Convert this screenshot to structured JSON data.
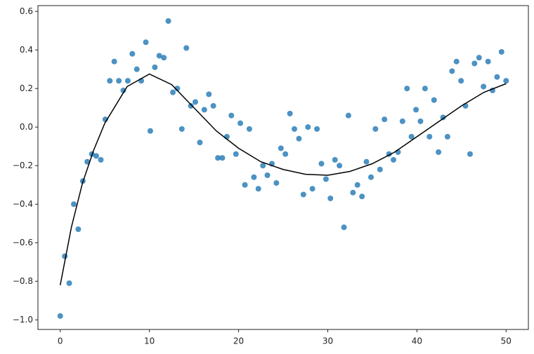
{
  "chart_data": {
    "type": "scatter",
    "xlim": [
      -2.5,
      52.5
    ],
    "ylim": [
      -1.05,
      0.63
    ],
    "xticks": [
      0,
      10,
      20,
      30,
      40,
      50
    ],
    "yticks": [
      {
        "value": 0.6,
        "label": "0.6"
      },
      {
        "value": 0.4,
        "label": "0.4"
      },
      {
        "value": 0.2,
        "label": "0.2"
      },
      {
        "value": 0,
        "label": "0.0"
      },
      {
        "value": -0.2,
        "label": "−0.2"
      },
      {
        "value": -0.4,
        "label": "−0.4"
      },
      {
        "value": -0.6,
        "label": "−0.6"
      },
      {
        "value": -0.8,
        "label": "−0.8"
      },
      {
        "value": -1,
        "label": "−1.0"
      }
    ],
    "series": [
      {
        "color": "#1f77b4",
        "x": [
          0,
          0.51,
          1.01,
          1.52,
          2.02,
          2.53,
          3.03,
          3.54,
          4.04,
          4.55,
          5.05,
          5.56,
          6.06,
          6.57,
          7.07,
          7.58,
          8.08,
          8.59,
          9.09,
          9.6,
          10.1,
          10.61,
          11.11,
          11.62,
          12.12,
          12.63,
          13.13,
          13.64,
          14.14,
          14.65,
          15.15,
          15.66,
          16.16,
          16.67,
          17.17,
          17.68,
          18.18,
          18.69,
          19.19,
          19.7,
          20.2,
          20.71,
          21.21,
          21.72,
          22.22,
          22.73,
          23.23,
          23.74,
          24.24,
          24.75,
          25.25,
          25.76,
          26.26,
          26.77,
          27.27,
          27.78,
          28.28,
          28.79,
          29.29,
          29.8,
          30.3,
          30.81,
          31.31,
          31.82,
          32.32,
          32.83,
          33.33,
          33.84,
          34.34,
          34.85,
          35.35,
          35.86,
          36.36,
          36.87,
          37.37,
          37.88,
          38.38,
          38.89,
          39.39,
          39.9,
          40.4,
          40.91,
          41.41,
          41.92,
          42.42,
          42.93,
          43.43,
          43.94,
          44.44,
          44.95,
          45.45,
          45.96,
          46.46,
          46.97,
          47.47,
          47.98,
          48.48,
          48.99,
          49.49,
          50
        ],
        "values": [
          -0.98,
          -0.67,
          -0.81,
          -0.4,
          -0.53,
          -0.28,
          -0.18,
          -0.14,
          -0.15,
          -0.17,
          0.04,
          0.24,
          0.34,
          0.24,
          0.19,
          0.24,
          0.38,
          0.3,
          0.24,
          0.44,
          -0.02,
          0.31,
          0.37,
          0.36,
          0.55,
          0.18,
          0.2,
          -0.01,
          0.41,
          0.11,
          0.13,
          -0.08,
          0.09,
          0.17,
          0.11,
          -0.16,
          -0.16,
          -0.05,
          0.06,
          -0.14,
          0.02,
          -0.3,
          -0.01,
          -0.26,
          -0.32,
          -0.2,
          -0.25,
          -0.19,
          -0.29,
          -0.11,
          -0.14,
          0.07,
          -0.01,
          -0.06,
          -0.35,
          0.0,
          -0.32,
          -0.01,
          -0.19,
          -0.27,
          -0.37,
          -0.17,
          -0.2,
          -0.52,
          0.06,
          -0.34,
          -0.3,
          -0.36,
          -0.18,
          -0.26,
          -0.01,
          -0.22,
          0.04,
          -0.14,
          -0.17,
          -0.13,
          0.03,
          0.2,
          -0.05,
          0.09,
          0.03,
          0.2,
          -0.05,
          0.14,
          -0.13,
          0.05,
          -0.05,
          0.29,
          0.34,
          0.24,
          0.11,
          -0.14,
          0.33,
          0.36,
          0.21,
          0.34,
          0.19,
          0.26,
          0.39,
          0.24
        ]
      },
      {
        "type": "line",
        "color": "#000000",
        "x": [
          0,
          1.25,
          2.5,
          3.75,
          5,
          7.5,
          10,
          12.5,
          15,
          17.5,
          20,
          22.5,
          25,
          27.5,
          30,
          32.5,
          35,
          37.5,
          40,
          42.5,
          45,
          47.5,
          50
        ],
        "values": [
          -0.82,
          -0.52,
          -0.29,
          -0.12,
          0.02,
          0.21,
          0.275,
          0.22,
          0.1,
          -0.02,
          -0.11,
          -0.18,
          -0.22,
          -0.245,
          -0.25,
          -0.23,
          -0.19,
          -0.13,
          -0.05,
          0.03,
          0.11,
          0.18,
          0.225
        ]
      }
    ]
  }
}
